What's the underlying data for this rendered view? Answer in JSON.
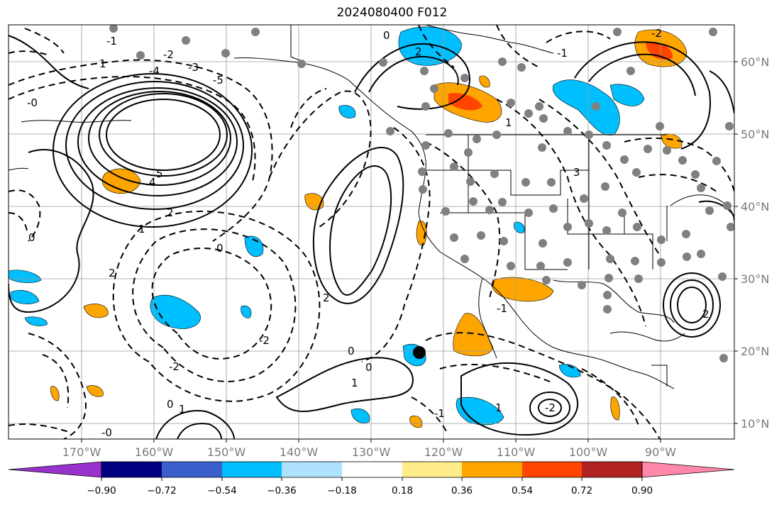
{
  "title": "2024080400 F012",
  "map": {
    "lon_labels": [
      "170°W",
      "160°W",
      "150°W",
      "140°W",
      "130°W",
      "120°W",
      "110°W",
      "100°W",
      "90°W"
    ],
    "lat_labels": [
      "60°N",
      "50°N",
      "40°N",
      "30°N",
      "20°N",
      "10°N"
    ],
    "contour_labels": [
      "0",
      "-1",
      "-2",
      "-3",
      "-4",
      "-5",
      "1",
      "2",
      "4",
      "5",
      "-0",
      "0",
      "1",
      "2",
      "0",
      "1",
      "2",
      "-0",
      "-2",
      "-2",
      "0",
      "1",
      "1",
      "2",
      "3",
      "-1",
      "-2",
      "-1",
      "0",
      "-2",
      "0",
      "1",
      "2",
      "-1"
    ],
    "shading_colors": {
      "negative": "#00bfff",
      "positive": "#ffa500",
      "strong_positive": "#ff4500"
    },
    "marker_color": "#808080"
  },
  "colorbar": {
    "ticks": [
      "−0.90",
      "−0.72",
      "−0.54",
      "−0.36",
      "−0.18",
      "0.18",
      "0.36",
      "0.54",
      "0.72",
      "0.90"
    ],
    "colors": [
      "#9932cc",
      "#000080",
      "#3a5fcd",
      "#00bfff",
      "#b0e2ff",
      "#ffffff",
      "#ffec8b",
      "#ffa500",
      "#ff4500",
      "#b22222",
      "#ff88aa"
    ]
  }
}
